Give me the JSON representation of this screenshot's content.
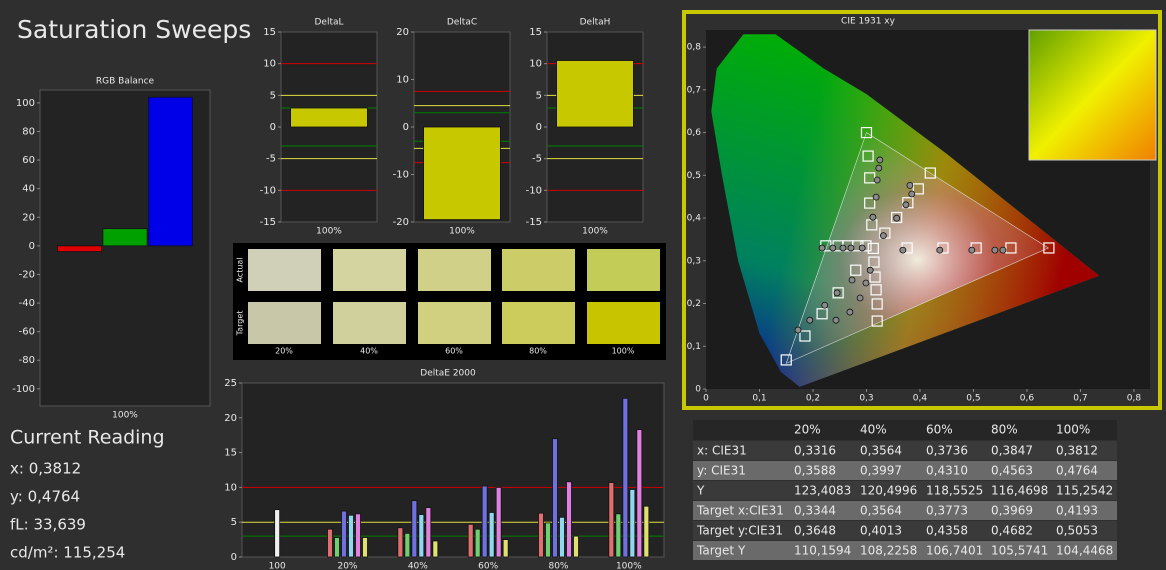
{
  "header": {
    "title": "Saturation Sweeps"
  },
  "chart_data": [
    {
      "type": "bar",
      "title": "RGB Balance",
      "categories": [
        "100%"
      ],
      "series": [
        {
          "color": "#e00000",
          "values": [
            -4
          ]
        },
        {
          "color": "#00a000",
          "values": [
            12
          ]
        },
        {
          "color": "#0000e8",
          "values": [
            104
          ]
        }
      ],
      "ylim": [
        -112,
        109
      ],
      "yticks": [
        -100,
        -80,
        -60,
        -40,
        -20,
        0,
        20,
        40,
        60,
        80,
        100
      ]
    },
    {
      "type": "bar",
      "title": "DeltaL",
      "categories": [
        "100%"
      ],
      "values": [
        3
      ],
      "color": "#c8c800",
      "ylim": [
        -15,
        15
      ],
      "yticks": [
        -15,
        -10,
        -5,
        0,
        5,
        10,
        15
      ],
      "reference_lines": [
        {
          "value": 10,
          "color": "#d00000"
        },
        {
          "value": -10,
          "color": "#d00000"
        },
        {
          "value": 5,
          "color": "#e0e040"
        },
        {
          "value": -5,
          "color": "#e0e040"
        },
        {
          "value": 3,
          "color": "#008000"
        },
        {
          "value": -3,
          "color": "#008000"
        }
      ]
    },
    {
      "type": "bar",
      "title": "DeltaC",
      "categories": [
        "100%"
      ],
      "values": [
        -19.5
      ],
      "color": "#c8c800",
      "ylim": [
        -20,
        20
      ],
      "yticks": [
        -20,
        -10,
        0,
        10,
        20
      ],
      "reference_lines": [
        {
          "value": 7.5,
          "color": "#d00000"
        },
        {
          "value": -7.5,
          "color": "#d00000"
        },
        {
          "value": 4.5,
          "color": "#e0e040"
        },
        {
          "value": -4.5,
          "color": "#e0e040"
        },
        {
          "value": 3,
          "color": "#008000"
        },
        {
          "value": -3,
          "color": "#008000"
        }
      ]
    },
    {
      "type": "bar",
      "title": "DeltaH",
      "categories": [
        "100%"
      ],
      "values": [
        10.5
      ],
      "color": "#c8c800",
      "ylim": [
        -15,
        15
      ],
      "yticks": [
        -15,
        -10,
        -5,
        0,
        5,
        10,
        15
      ],
      "reference_lines": [
        {
          "value": 10,
          "color": "#d00000"
        },
        {
          "value": -10,
          "color": "#d00000"
        },
        {
          "value": 5,
          "color": "#e0e040"
        },
        {
          "value": -5,
          "color": "#e0e040"
        },
        {
          "value": 3,
          "color": "#008000"
        },
        {
          "value": -3,
          "color": "#008000"
        }
      ]
    },
    {
      "type": "bar",
      "title": "DeltaE 2000",
      "categories": [
        "100",
        "20%",
        "40%",
        "60%",
        "80%",
        "100%"
      ],
      "series": [
        {
          "color": "#f0f0f0",
          "values": [
            6.8,
            null,
            null,
            null,
            null,
            null
          ]
        },
        {
          "color": "#e07070",
          "values": [
            null,
            4,
            4.2,
            4.7,
            6.3,
            10.7
          ]
        },
        {
          "color": "#70d070",
          "values": [
            null,
            2.8,
            3.4,
            4,
            4.9,
            6.2
          ]
        },
        {
          "color": "#7070e0",
          "values": [
            null,
            6.6,
            8.1,
            10.2,
            17,
            22.8
          ]
        },
        {
          "color": "#90d8f0",
          "values": [
            null,
            6,
            6.1,
            6.4,
            5.7,
            9.7
          ]
        },
        {
          "color": "#e080e0",
          "values": [
            null,
            6.2,
            7.1,
            10,
            10.8,
            18.3
          ]
        },
        {
          "color": "#e0e070",
          "values": [
            null,
            2.8,
            2.3,
            2.5,
            3,
            7.3
          ]
        }
      ],
      "ylim": [
        0,
        25
      ],
      "yticks": [
        0,
        5,
        10,
        15,
        20,
        25
      ],
      "reference_lines": [
        {
          "value": 10,
          "color": "#d00000"
        },
        {
          "value": 5,
          "color": "#e0e040"
        },
        {
          "value": 3,
          "color": "#008000"
        }
      ]
    },
    {
      "type": "scatter",
      "title": "CIE 1931 xy",
      "xlim": [
        0,
        0.83
      ],
      "ylim": [
        0,
        0.84
      ],
      "xticks": [
        0,
        {
          "value": 0.1,
          "label": "0,1"
        },
        {
          "value": 0.2,
          "label": "0,2"
        },
        {
          "value": 0.3,
          "label": "0,3"
        },
        {
          "value": 0.4,
          "label": "0,4"
        },
        {
          "value": 0.5,
          "label": "0,5"
        },
        {
          "value": 0.6,
          "label": "0,6"
        },
        {
          "value": 0.7,
          "label": "0,7"
        },
        {
          "value": 0.8,
          "label": "0,8"
        }
      ],
      "yticks": [
        0,
        {
          "value": 0.1,
          "label": "0,1"
        },
        {
          "value": 0.2,
          "label": "0,2"
        },
        {
          "value": 0.3,
          "label": "0,3"
        },
        {
          "value": 0.4,
          "label": "0,4"
        },
        {
          "value": 0.5,
          "label": "0,5"
        },
        {
          "value": 0.6,
          "label": "0,6"
        },
        {
          "value": 0.7,
          "label": "0,7"
        },
        {
          "value": 0.8,
          "label": "0,8"
        }
      ],
      "gamut": {
        "x": [
          0.64,
          0.3,
          0.15
        ],
        "y": [
          0.33,
          0.6,
          0.06
        ]
      },
      "series": [
        {
          "marker": "square",
          "color": "#ffffff",
          "x": [
            0.3127,
            0.376,
            0.443,
            0.505,
            0.57,
            0.641,
            0.3,
            0.303,
            0.306,
            0.306,
            0.31,
            0.15,
            0.185,
            0.217,
            0.247,
            0.28,
            0.224,
            0.247,
            0.265,
            0.284,
            0.299,
            0.32,
            0.32,
            0.318,
            0.316,
            0.314,
            0.3344,
            0.3564,
            0.3773,
            0.3969,
            0.4193
          ],
          "y": [
            0.329,
            0.33,
            0.33,
            0.33,
            0.33,
            0.33,
            0.6,
            0.545,
            0.494,
            0.435,
            0.384,
            0.068,
            0.124,
            0.176,
            0.225,
            0.278,
            0.335,
            0.335,
            0.335,
            0.335,
            0.335,
            0.159,
            0.199,
            0.232,
            0.262,
            0.297,
            0.3648,
            0.4013,
            0.4358,
            0.4682,
            0.5053
          ]
        },
        {
          "marker": "circle",
          "color": "#8a8a8a",
          "x": [
            0.368,
            0.437,
            0.497,
            0.54,
            0.555,
            0.325,
            0.323,
            0.32,
            0.318,
            0.312,
            0.172,
            0.194,
            0.222,
            0.245,
            0.273,
            0.217,
            0.237,
            0.256,
            0.271,
            0.292,
            0.243,
            0.269,
            0.288,
            0.299,
            0.307,
            0.3316,
            0.3564,
            0.3736,
            0.3847,
            0.3812
          ],
          "y": [
            0.325,
            0.325,
            0.325,
            0.325,
            0.325,
            0.536,
            0.517,
            0.489,
            0.449,
            0.402,
            0.138,
            0.161,
            0.196,
            0.225,
            0.255,
            0.33,
            0.33,
            0.33,
            0.33,
            0.33,
            0.161,
            0.18,
            0.213,
            0.248,
            0.278,
            0.3588,
            0.3997,
            0.431,
            0.4563,
            0.4764
          ]
        }
      ]
    }
  ],
  "swatches": {
    "row_labels": [
      "Actual",
      "Target"
    ],
    "columns": [
      "20%",
      "40%",
      "60%",
      "80%",
      "100%"
    ],
    "actual": [
      "#d0d0b8",
      "#d4d4a0",
      "#d0d088",
      "#cccc68",
      "#c4cc58"
    ],
    "target": [
      "#c8c8a8",
      "#d0d09c",
      "#d0d080",
      "#cccc5c",
      "#c8c400"
    ]
  },
  "table": {
    "columns": [
      "20%",
      "40%",
      "60%",
      "80%",
      "100%"
    ],
    "rows": [
      {
        "label": "x: CIE31",
        "values": [
          "0,3316",
          "0,3564",
          "0,3736",
          "0,3847",
          "0,3812"
        ]
      },
      {
        "label": "y: CIE31",
        "values": [
          "0,3588",
          "0,3997",
          "0,4310",
          "0,4563",
          "0,4764"
        ]
      },
      {
        "label": "Y",
        "values": [
          "123,4083",
          "120,4996",
          "118,5525",
          "116,4698",
          "115,2542"
        ]
      },
      {
        "label": "Target x:CIE31",
        "values": [
          "0,3344",
          "0,3564",
          "0,3773",
          "0,3969",
          "0,4193"
        ]
      },
      {
        "label": "Target y:CIE31",
        "values": [
          "0,3648",
          "0,4013",
          "0,4358",
          "0,4682",
          "0,5053"
        ]
      },
      {
        "label": "Target Y",
        "values": [
          "110,1594",
          "108,2258",
          "106,7401",
          "105,5741",
          "104,4468"
        ]
      }
    ]
  },
  "current_reading": {
    "title": "Current Reading",
    "lines": [
      "x: 0,3812",
      "y: 0,4764",
      "fL: 33,639",
      "cd/m²: 115,254"
    ]
  }
}
